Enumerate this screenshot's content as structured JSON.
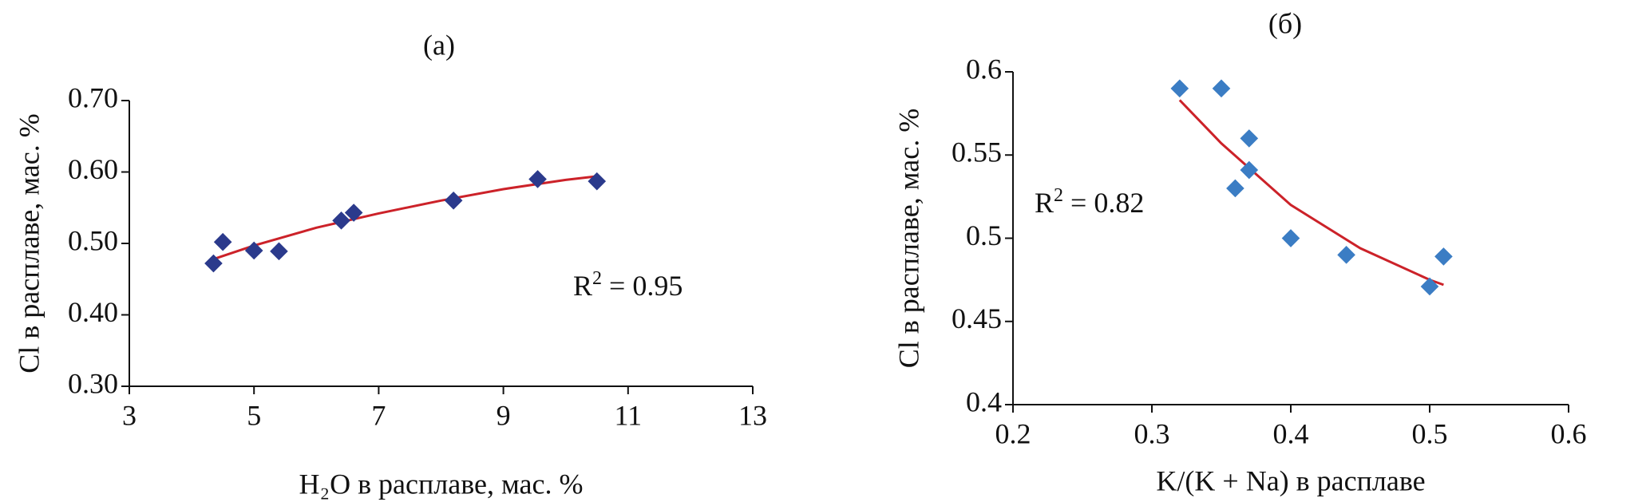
{
  "chart_data": [
    {
      "type": "scatter",
      "title": "(а)",
      "x_label": "H₂O в расплаве, мас. %",
      "y_label": "Cl в расплаве, мас. %",
      "x": [
        4.35,
        4.5,
        5.0,
        5.4,
        6.4,
        6.6,
        8.2,
        9.55,
        10.5
      ],
      "values": [
        0.472,
        0.502,
        0.49,
        0.489,
        0.532,
        0.543,
        0.56,
        0.59,
        0.587
      ],
      "color": "#2b3a8c",
      "trendline": {
        "x": [
          4.35,
          5,
          6,
          7,
          8,
          9,
          10,
          10.5
        ],
        "values": [
          0.478,
          0.497,
          0.522,
          0.542,
          0.56,
          0.576,
          0.589,
          0.594
        ],
        "color": "#cc2229"
      },
      "annotation": {
        "base": "R",
        "sup": "2",
        "rest": " = 0.95"
      },
      "xlim": [
        3,
        13
      ],
      "xticks": [
        3,
        5,
        7,
        9,
        11,
        13
      ],
      "ylim": [
        0.3,
        0.7
      ],
      "yticks": [
        {
          "value": 0.3,
          "label": "0.30"
        },
        {
          "value": 0.4,
          "label": "0.40"
        },
        {
          "value": 0.5,
          "label": "0.50"
        },
        {
          "value": 0.6,
          "label": "0.60"
        },
        {
          "value": 0.7,
          "label": "0.70"
        }
      ]
    },
    {
      "type": "scatter",
      "title": "(б)",
      "x_label": "K/(K + Na) в расплаве",
      "y_label": "Cl в расплаве, мас. %",
      "x": [
        0.32,
        0.35,
        0.37,
        0.37,
        0.36,
        0.4,
        0.44,
        0.5,
        0.51
      ],
      "values": [
        0.59,
        0.59,
        0.56,
        0.541,
        0.53,
        0.5,
        0.49,
        0.471,
        0.489
      ],
      "color": "#3b7dc4",
      "trendline": {
        "x": [
          0.32,
          0.35,
          0.4,
          0.45,
          0.5,
          0.51
        ],
        "values": [
          0.583,
          0.557,
          0.52,
          0.494,
          0.475,
          0.472
        ],
        "color": "#cc2229"
      },
      "annotation": {
        "base": "R",
        "sup": "2",
        "rest": " = 0.82"
      },
      "xlim": [
        0.2,
        0.6
      ],
      "xticks": [
        0.2,
        0.3,
        0.4,
        0.5,
        0.6
      ],
      "ylim": [
        0.4,
        0.6
      ],
      "yticks": [
        0.4,
        0.45,
        0.5,
        0.55,
        0.6
      ]
    }
  ]
}
